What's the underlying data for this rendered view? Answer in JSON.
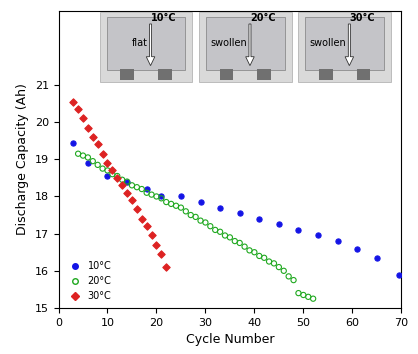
{
  "chart_data": {
    "type": "scatter",
    "x_label": "Cycle Number",
    "y_label": "Discharge Capacity (Ah)",
    "xlim": [
      0,
      70
    ],
    "xticks": [
      0,
      10,
      20,
      30,
      40,
      50,
      60,
      70
    ],
    "ylim": [
      15,
      23
    ],
    "yticks": [
      15,
      16,
      17,
      18,
      19,
      20,
      21
    ],
    "grid": false,
    "legend": "lower left",
    "annotations": [
      [
        "10°C",
        "flat"
      ],
      [
        "20°C",
        "swollen"
      ],
      [
        "30°C",
        "swollen"
      ]
    ],
    "series": [
      {
        "name": "10°C",
        "color": "#1414e6",
        "marker": "circle",
        "x": [
          3,
          6,
          10,
          14,
          18,
          21,
          25,
          29,
          33,
          37,
          41,
          45,
          49,
          53,
          57,
          61,
          65,
          69.5
        ],
        "values": [
          19.45,
          18.9,
          18.55,
          18.4,
          18.2,
          18.0,
          18.0,
          17.85,
          17.7,
          17.55,
          17.4,
          17.25,
          17.1,
          16.95,
          16.8,
          16.6,
          16.35,
          15.9
        ]
      },
      {
        "name": "20°C",
        "color": "#1fa81f",
        "marker": "hollow",
        "x": [
          4,
          5,
          6,
          7,
          8,
          9,
          10,
          11,
          12,
          13,
          14,
          15,
          16,
          17,
          18,
          19,
          20,
          21,
          22,
          23,
          24,
          25,
          26,
          27,
          28,
          29,
          30,
          31,
          32,
          33,
          34,
          35,
          36,
          37,
          38,
          39,
          40,
          41,
          42,
          43,
          44,
          45,
          46,
          47,
          48,
          49,
          50,
          51,
          52
        ],
        "values": [
          19.15,
          19.1,
          19.05,
          18.95,
          18.85,
          18.75,
          18.7,
          18.6,
          18.55,
          18.45,
          18.4,
          18.3,
          18.25,
          18.2,
          18.1,
          18.05,
          18.0,
          17.95,
          17.85,
          17.8,
          17.75,
          17.7,
          17.6,
          17.5,
          17.45,
          17.35,
          17.3,
          17.2,
          17.1,
          17.05,
          16.95,
          16.9,
          16.8,
          16.75,
          16.65,
          16.55,
          16.5,
          16.4,
          16.35,
          16.25,
          16.2,
          16.1,
          16.0,
          15.85,
          15.75,
          15.4,
          15.35,
          15.3,
          15.25
        ]
      },
      {
        "name": "30°C",
        "color": "#dd2222",
        "marker": "diamond",
        "x": [
          3,
          4,
          5,
          6,
          7,
          8,
          9,
          10,
          11,
          12,
          13,
          14,
          15,
          16,
          17,
          18,
          19,
          20,
          21,
          22
        ],
        "values": [
          20.55,
          20.35,
          20.1,
          19.85,
          19.6,
          19.4,
          19.15,
          18.9,
          18.7,
          18.5,
          18.3,
          18.1,
          17.9,
          17.65,
          17.4,
          17.2,
          16.95,
          16.7,
          16.45,
          16.1
        ]
      }
    ]
  }
}
